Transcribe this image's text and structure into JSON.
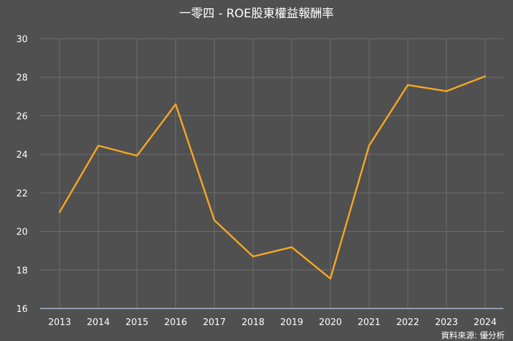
{
  "chart_data": {
    "type": "line",
    "title": "一零四 - ROE股東權益報酬率",
    "xlabel": "",
    "ylabel": "",
    "categories": [
      "2013",
      "2014",
      "2015",
      "2016",
      "2017",
      "2018",
      "2019",
      "2020",
      "2021",
      "2022",
      "2023",
      "2024"
    ],
    "series": [
      {
        "values": [
          21.0,
          24.45,
          23.93,
          26.6,
          20.58,
          18.7,
          19.18,
          17.55,
          24.45,
          27.6,
          27.28,
          28.05
        ]
      }
    ],
    "ylim": [
      16,
      30
    ],
    "yticks": [
      "16",
      "18",
      "20",
      "22",
      "24",
      "26",
      "28",
      "30"
    ],
    "grid": true,
    "legend": "none",
    "colors": {
      "background": "#505050",
      "line": "#f5a623",
      "grid": "#6e6e6e",
      "axis": "#a9b8d6",
      "text": "#ffffff"
    }
  },
  "source": "資料來源: 優分析"
}
